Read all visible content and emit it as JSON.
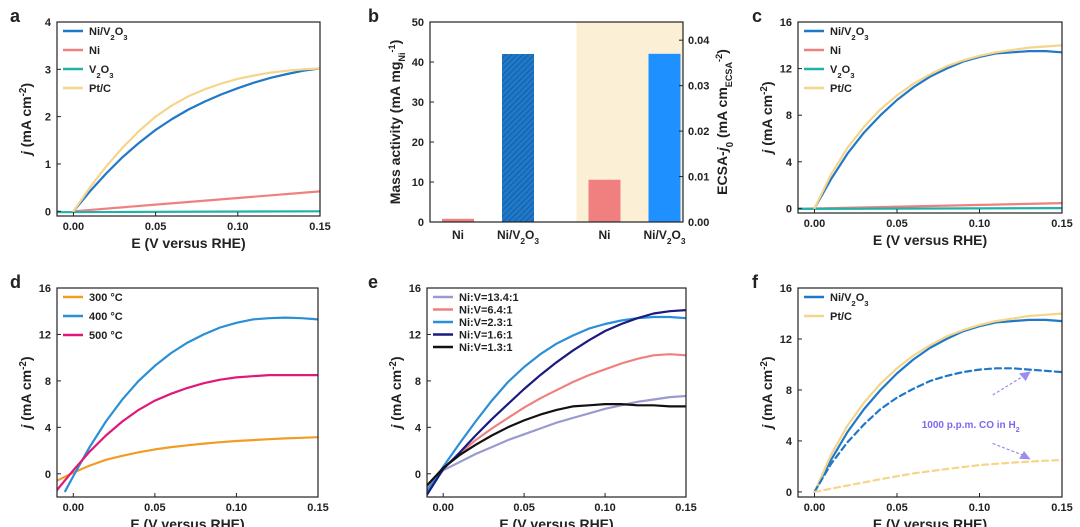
{
  "chart_data": [
    {
      "panel": "a",
      "type": "line",
      "xlabel": "E (V versus RHE)",
      "ylabel": "j (mA cm-2)",
      "xlim": [
        -0.01,
        0.15
      ],
      "ylim": [
        -0.1,
        4
      ],
      "xticks": [
        "0.00",
        "0.05",
        "0.10",
        "0.15"
      ],
      "yticks": [
        "0",
        "1",
        "2",
        "3",
        "4"
      ],
      "legend": "top-left",
      "series": [
        {
          "name": "Ni/V2O3",
          "color": "#1f78c8",
          "x": [
            0,
            0.01,
            0.02,
            0.03,
            0.04,
            0.05,
            0.06,
            0.07,
            0.08,
            0.09,
            0.1,
            0.11,
            0.12,
            0.13,
            0.14,
            0.15
          ],
          "y": [
            0,
            0.42,
            0.8,
            1.15,
            1.45,
            1.72,
            1.95,
            2.15,
            2.32,
            2.47,
            2.6,
            2.72,
            2.82,
            2.9,
            2.97,
            3.02
          ]
        },
        {
          "name": "Ni",
          "color": "#f08080",
          "x": [
            0,
            0.05,
            0.1,
            0.15
          ],
          "y": [
            0,
            0.14,
            0.28,
            0.42
          ]
        },
        {
          "name": "V2O3",
          "color": "#20b2aa",
          "x": [
            -0.01,
            0.15
          ],
          "y": [
            -0.02,
            0
          ]
        },
        {
          "name": "Pt/C",
          "color": "#f5d58a",
          "x": [
            0,
            0.01,
            0.02,
            0.03,
            0.04,
            0.05,
            0.06,
            0.07,
            0.08,
            0.09,
            0.1,
            0.11,
            0.12,
            0.13,
            0.14,
            0.15
          ],
          "y": [
            0,
            0.5,
            0.95,
            1.35,
            1.7,
            2.0,
            2.24,
            2.43,
            2.58,
            2.7,
            2.8,
            2.87,
            2.93,
            2.97,
            3.0,
            3.02
          ]
        }
      ]
    },
    {
      "panel": "b",
      "type": "bar",
      "ylabel": "Mass activity (mA mgNi-1)",
      "ylabel_right": "ECSA-j0 (mA cmECSA-2)",
      "ylim": [
        0,
        50
      ],
      "ylim_right": [
        0,
        0.044
      ],
      "yticks": [
        "0",
        "10",
        "20",
        "30",
        "40",
        "50"
      ],
      "yticks_right": [
        "0.00",
        "0.01",
        "0.02",
        "0.03",
        "0.04"
      ],
      "categories": [
        "Ni",
        "Ni/V2O3",
        "Ni",
        "Ni/V2O3"
      ],
      "values": [
        0.8,
        42,
        0.0093,
        0.037
      ],
      "axis": [
        "left",
        "left",
        "right",
        "right"
      ],
      "colors": [
        "#f08080",
        "#1f78c8",
        "#f08080",
        "#1e90ff"
      ],
      "shaded_region": "right half"
    },
    {
      "panel": "c",
      "type": "line",
      "xlabel": "E (V versus RHE)",
      "ylabel": "j (mA cm-2)",
      "xlim": [
        -0.01,
        0.15
      ],
      "ylim": [
        -0.4,
        16
      ],
      "xticks": [
        "0.00",
        "0.05",
        "0.10",
        "0.15"
      ],
      "yticks": [
        "0",
        "4",
        "8",
        "12",
        "16"
      ],
      "legend": "top-left",
      "series": [
        {
          "name": "Ni/V2O3",
          "color": "#1f78c8",
          "x": [
            0,
            0.01,
            0.02,
            0.03,
            0.04,
            0.05,
            0.06,
            0.07,
            0.08,
            0.09,
            0.1,
            0.11,
            0.12,
            0.13,
            0.14,
            0.15
          ],
          "y": [
            0,
            2.5,
            4.7,
            6.5,
            8.0,
            9.3,
            10.4,
            11.3,
            12.0,
            12.6,
            13.0,
            13.3,
            13.4,
            13.5,
            13.5,
            13.4
          ]
        },
        {
          "name": "Ni",
          "color": "#f08080",
          "x": [
            -0.01,
            0.15
          ],
          "y": [
            -0.05,
            0.45
          ]
        },
        {
          "name": "V2O3",
          "color": "#20b2aa",
          "x": [
            -0.01,
            0.15
          ],
          "y": [
            -0.05,
            0.02
          ]
        },
        {
          "name": "Pt/C",
          "color": "#f5d58a",
          "x": [
            0,
            0.01,
            0.02,
            0.03,
            0.04,
            0.05,
            0.06,
            0.07,
            0.08,
            0.09,
            0.1,
            0.11,
            0.12,
            0.13,
            0.14,
            0.15
          ],
          "y": [
            0,
            2.9,
            5.2,
            7.0,
            8.5,
            9.7,
            10.7,
            11.5,
            12.2,
            12.7,
            13.1,
            13.4,
            13.6,
            13.8,
            13.9,
            14.0
          ]
        }
      ]
    },
    {
      "panel": "d",
      "type": "line",
      "xlabel": "E (V versus RHE)",
      "ylabel": "j (mA cm-2)",
      "xlim": [
        -0.01,
        0.15
      ],
      "ylim": [
        -2,
        16
      ],
      "xticks": [
        "0.00",
        "0.05",
        "0.10",
        "0.15"
      ],
      "yticks": [
        "0",
        "4",
        "8",
        "12",
        "16"
      ],
      "legend": "top-left",
      "series": [
        {
          "name": "300 °C",
          "color": "#f39c24",
          "x": [
            -0.01,
            0,
            0.01,
            0.02,
            0.03,
            0.04,
            0.05,
            0.06,
            0.07,
            0.08,
            0.09,
            0.1,
            0.11,
            0.12,
            0.13,
            0.14,
            0.15
          ],
          "y": [
            -0.6,
            0.1,
            0.7,
            1.2,
            1.55,
            1.85,
            2.1,
            2.3,
            2.45,
            2.6,
            2.72,
            2.82,
            2.9,
            2.98,
            3.05,
            3.1,
            3.15
          ]
        },
        {
          "name": "400 °C",
          "color": "#2a8fd6",
          "x": [
            -0.005,
            0,
            0.01,
            0.02,
            0.03,
            0.04,
            0.05,
            0.06,
            0.07,
            0.08,
            0.09,
            0.1,
            0.11,
            0.12,
            0.13,
            0.14,
            0.15
          ],
          "y": [
            -1.5,
            -0.2,
            2.3,
            4.5,
            6.4,
            8.0,
            9.3,
            10.4,
            11.3,
            12.0,
            12.6,
            13.0,
            13.3,
            13.4,
            13.45,
            13.4,
            13.3
          ]
        },
        {
          "name": "500 °C",
          "color": "#e0187a",
          "x": [
            -0.01,
            0,
            0.01,
            0.02,
            0.03,
            0.04,
            0.05,
            0.06,
            0.07,
            0.08,
            0.09,
            0.1,
            0.11,
            0.12,
            0.13,
            0.14,
            0.15
          ],
          "y": [
            -1.4,
            0.3,
            1.9,
            3.3,
            4.5,
            5.5,
            6.3,
            6.9,
            7.4,
            7.8,
            8.1,
            8.3,
            8.4,
            8.5,
            8.5,
            8.5,
            8.5
          ]
        }
      ]
    },
    {
      "panel": "e",
      "type": "line",
      "xlabel": "E (V versus RHE)",
      "ylabel": "j (mA cm-2)",
      "xlim": [
        -0.01,
        0.15
      ],
      "ylim": [
        -2,
        16
      ],
      "xticks": [
        "0.00",
        "0.05",
        "0.10",
        "0.15"
      ],
      "yticks": [
        "0",
        "4",
        "8",
        "12",
        "16"
      ],
      "legend": "top-left",
      "series": [
        {
          "name": "Ni:V=13.4:1",
          "color": "#9a9ad0",
          "x": [
            -0.01,
            0,
            0.01,
            0.02,
            0.03,
            0.04,
            0.05,
            0.06,
            0.07,
            0.08,
            0.09,
            0.1,
            0.11,
            0.12,
            0.13,
            0.14,
            0.15
          ],
          "y": [
            -1.2,
            0.3,
            1.0,
            1.7,
            2.3,
            2.9,
            3.4,
            3.9,
            4.4,
            4.8,
            5.2,
            5.6,
            5.9,
            6.2,
            6.4,
            6.6,
            6.7
          ]
        },
        {
          "name": "Ni:V=6.4:1",
          "color": "#f08080",
          "x": [
            -0.01,
            0,
            0.01,
            0.02,
            0.03,
            0.04,
            0.05,
            0.06,
            0.07,
            0.08,
            0.09,
            0.1,
            0.11,
            0.12,
            0.13,
            0.14,
            0.15
          ],
          "y": [
            -1.3,
            0.5,
            1.7,
            2.9,
            3.9,
            4.8,
            5.7,
            6.5,
            7.2,
            7.9,
            8.5,
            9.0,
            9.5,
            9.9,
            10.2,
            10.3,
            10.2
          ]
        },
        {
          "name": "Ni:V=2.3:1",
          "color": "#2a8fd6",
          "x": [
            -0.01,
            0,
            0.01,
            0.02,
            0.03,
            0.04,
            0.05,
            0.06,
            0.07,
            0.08,
            0.09,
            0.1,
            0.11,
            0.12,
            0.13,
            0.14,
            0.15
          ],
          "y": [
            -1.5,
            0.6,
            2.6,
            4.5,
            6.3,
            7.9,
            9.2,
            10.3,
            11.2,
            11.9,
            12.5,
            12.9,
            13.2,
            13.4,
            13.5,
            13.5,
            13.4
          ]
        },
        {
          "name": "Ni:V=1.6:1",
          "color": "#1a1a80",
          "x": [
            -0.01,
            0,
            0.01,
            0.02,
            0.03,
            0.04,
            0.05,
            0.06,
            0.07,
            0.08,
            0.09,
            0.1,
            0.11,
            0.12,
            0.13,
            0.14,
            0.15
          ],
          "y": [
            -1.8,
            0.4,
            1.8,
            3.3,
            4.7,
            6.0,
            7.3,
            8.5,
            9.6,
            10.6,
            11.5,
            12.3,
            12.9,
            13.4,
            13.8,
            14.0,
            14.1
          ]
        },
        {
          "name": "Ni:V=1.3:1",
          "color": "#111111",
          "x": [
            -0.01,
            0,
            0.01,
            0.02,
            0.03,
            0.04,
            0.05,
            0.06,
            0.07,
            0.08,
            0.09,
            0.1,
            0.11,
            0.12,
            0.13,
            0.14,
            0.15
          ],
          "y": [
            -1.0,
            0.5,
            1.6,
            2.5,
            3.3,
            4.0,
            4.6,
            5.1,
            5.5,
            5.8,
            5.9,
            6.0,
            6.0,
            5.9,
            5.9,
            5.8,
            5.8
          ]
        }
      ]
    },
    {
      "panel": "f",
      "type": "line",
      "xlabel": "E (V versus RHE)",
      "ylabel": "j (mA cm-2)",
      "xlim": [
        -0.01,
        0.15
      ],
      "ylim": [
        -0.4,
        16
      ],
      "xticks": [
        "0.00",
        "0.05",
        "0.10",
        "0.15"
      ],
      "yticks": [
        "0",
        "4",
        "8",
        "12",
        "16"
      ],
      "legend": "top-left",
      "annotation": "1000 p.p.m. CO in H2",
      "series": [
        {
          "name": "Ni/V2O3",
          "color": "#1f78c8",
          "x": [
            0,
            0.01,
            0.02,
            0.03,
            0.04,
            0.05,
            0.06,
            0.07,
            0.08,
            0.09,
            0.1,
            0.11,
            0.12,
            0.13,
            0.14,
            0.15
          ],
          "y": [
            0,
            2.5,
            4.7,
            6.5,
            8.0,
            9.3,
            10.4,
            11.3,
            12.0,
            12.6,
            13.0,
            13.3,
            13.4,
            13.5,
            13.5,
            13.4
          ]
        },
        {
          "name": "Pt/C",
          "color": "#f5d58a",
          "x": [
            0,
            0.01,
            0.02,
            0.03,
            0.04,
            0.05,
            0.06,
            0.07,
            0.08,
            0.09,
            0.1,
            0.11,
            0.12,
            0.13,
            0.14,
            0.15
          ],
          "y": [
            0,
            2.9,
            5.2,
            7.0,
            8.5,
            9.7,
            10.7,
            11.5,
            12.2,
            12.7,
            13.1,
            13.4,
            13.6,
            13.8,
            13.9,
            14.0
          ]
        },
        {
          "color": "#1f78c8",
          "dashed": true,
          "x": [
            0,
            0.01,
            0.02,
            0.03,
            0.04,
            0.05,
            0.06,
            0.07,
            0.08,
            0.09,
            0.1,
            0.11,
            0.12,
            0.13,
            0.14,
            0.15
          ],
          "y": [
            0,
            2.2,
            3.9,
            5.3,
            6.5,
            7.4,
            8.1,
            8.7,
            9.1,
            9.4,
            9.6,
            9.7,
            9.7,
            9.6,
            9.5,
            9.4
          ]
        },
        {
          "color": "#f5d58a",
          "dashed": true,
          "x": [
            0,
            0.02,
            0.04,
            0.06,
            0.08,
            0.1,
            0.12,
            0.14,
            0.15
          ],
          "y": [
            0,
            0.5,
            1.0,
            1.45,
            1.8,
            2.1,
            2.3,
            2.45,
            2.5
          ]
        }
      ]
    }
  ]
}
